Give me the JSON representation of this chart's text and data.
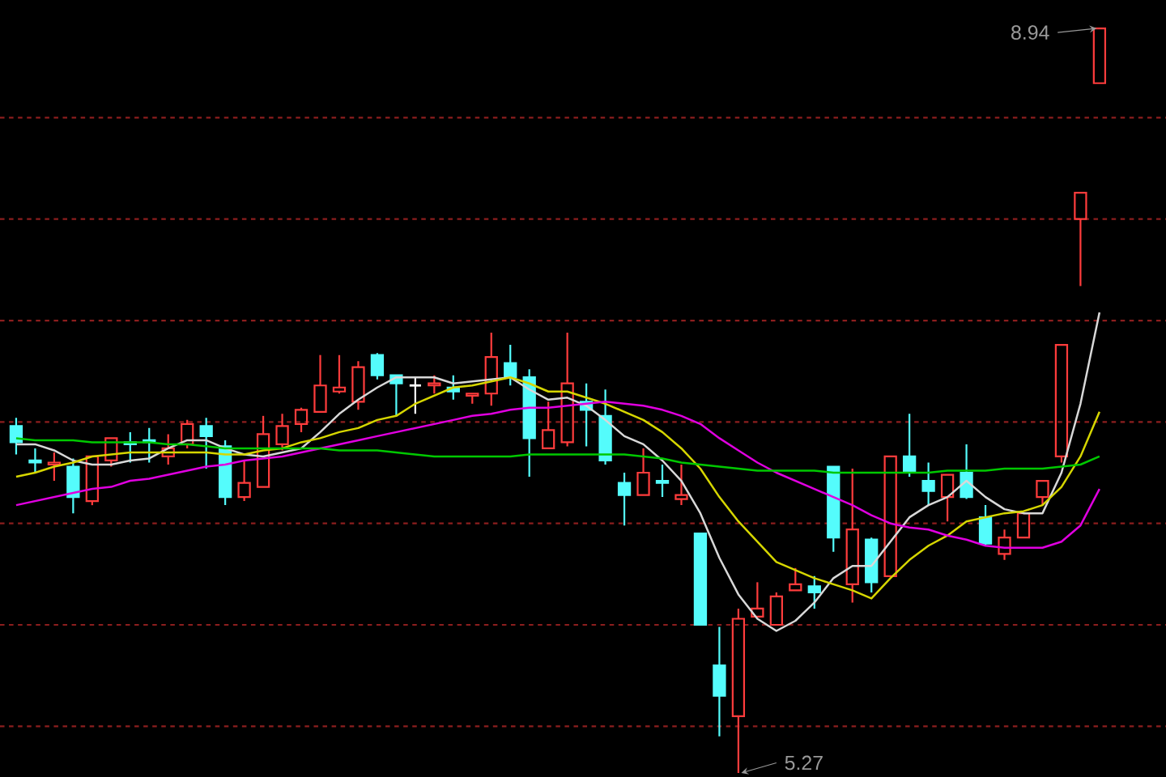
{
  "chart_data": {
    "type": "candlestick",
    "categories": [
      null,
      null,
      null,
      null,
      null,
      null,
      null,
      null,
      null,
      null,
      null,
      null,
      null,
      null,
      null,
      null,
      null,
      null,
      null,
      null,
      null,
      null,
      null,
      null,
      null,
      null,
      null,
      null,
      null,
      null,
      null,
      null,
      null,
      null,
      null,
      null,
      null,
      null,
      null,
      null,
      null,
      null,
      null,
      null,
      null,
      null,
      null,
      null,
      null,
      null,
      null,
      null,
      null,
      null,
      null,
      null,
      null,
      null
    ],
    "ohlc": [
      [
        6.98,
        7.02,
        6.84,
        6.9
      ],
      [
        6.81,
        6.87,
        6.75,
        6.8
      ],
      [
        6.79,
        6.85,
        6.71,
        6.8
      ],
      [
        6.78,
        6.82,
        6.55,
        6.63
      ],
      [
        6.61,
        6.83,
        6.59,
        6.83
      ],
      [
        6.81,
        6.92,
        6.78,
        6.92
      ],
      [
        6.9,
        6.95,
        6.8,
        6.89
      ],
      [
        6.91,
        6.97,
        6.8,
        6.9
      ],
      [
        6.83,
        6.94,
        6.79,
        6.87
      ],
      [
        6.89,
        7.01,
        6.87,
        6.99
      ],
      [
        6.98,
        7.02,
        6.77,
        6.93
      ],
      [
        6.88,
        6.91,
        6.59,
        6.63
      ],
      [
        6.63,
        6.81,
        6.61,
        6.7
      ],
      [
        6.68,
        7.03,
        6.68,
        6.94
      ],
      [
        6.89,
        7.04,
        6.86,
        6.98
      ],
      [
        6.99,
        7.07,
        6.95,
        7.06
      ],
      [
        7.05,
        7.33,
        7.05,
        7.18
      ],
      [
        7.15,
        7.33,
        7.14,
        7.17
      ],
      [
        7.1,
        7.3,
        7.06,
        7.27
      ],
      [
        7.33,
        7.34,
        7.21,
        7.23
      ],
      [
        7.23,
        7.23,
        7.03,
        7.19
      ],
      [
        7.18,
        7.22,
        7.04,
        7.18
      ],
      [
        7.18,
        7.23,
        7.14,
        7.19
      ],
      [
        7.17,
        7.23,
        7.11,
        7.15
      ],
      [
        7.13,
        7.14,
        7.09,
        7.14
      ],
      [
        7.14,
        7.44,
        7.08,
        7.32
      ],
      [
        7.29,
        7.38,
        7.18,
        7.22
      ],
      [
        7.22,
        7.26,
        6.73,
        6.92
      ],
      [
        6.87,
        7.1,
        6.87,
        6.96
      ],
      [
        6.9,
        7.44,
        6.88,
        7.19
      ],
      [
        7.1,
        7.19,
        6.88,
        7.06
      ],
      [
        7.03,
        7.16,
        6.79,
        6.81
      ],
      [
        6.7,
        6.75,
        6.49,
        6.64
      ],
      [
        6.64,
        6.87,
        6.64,
        6.75
      ],
      [
        6.71,
        6.79,
        6.63,
        6.7
      ],
      [
        6.62,
        6.79,
        6.59,
        6.64
      ],
      [
        6.45,
        6.45,
        6.0,
        6.0
      ],
      [
        5.8,
        5.99,
        5.45,
        5.65
      ],
      [
        5.55,
        6.08,
        5.27,
        6.03
      ],
      [
        6.04,
        6.21,
        6.04,
        6.08
      ],
      [
        6.0,
        6.16,
        6.0,
        6.14
      ],
      [
        6.17,
        6.28,
        6.17,
        6.2
      ],
      [
        6.19,
        6.24,
        6.08,
        6.16
      ],
      [
        6.78,
        6.78,
        6.36,
        6.43
      ],
      [
        6.2,
        6.77,
        6.11,
        6.47
      ],
      [
        6.42,
        6.43,
        6.16,
        6.21
      ],
      [
        6.24,
        6.83,
        6.24,
        6.83
      ],
      [
        6.83,
        7.04,
        6.73,
        6.75
      ],
      [
        6.71,
        6.8,
        6.59,
        6.66
      ],
      [
        6.63,
        6.74,
        6.51,
        6.74
      ],
      [
        6.75,
        6.89,
        6.62,
        6.63
      ],
      [
        6.53,
        6.59,
        6.39,
        6.4
      ],
      [
        6.35,
        6.47,
        6.32,
        6.43
      ],
      [
        6.43,
        6.55,
        6.43,
        6.55
      ],
      [
        6.63,
        6.71,
        6.59,
        6.71
      ],
      [
        6.83,
        7.38,
        6.8,
        7.38
      ],
      [
        8.0,
        8.13,
        7.67,
        8.13
      ],
      [
        8.67,
        8.94,
        8.67,
        8.94
      ]
    ],
    "colors": [
      "#54fcfc",
      "#54fcfc",
      "#ff3c3c",
      "#54fcfc",
      "#ff3c3c",
      "#ff3c3c",
      "#54fcfc",
      "#54fcfc",
      "#ff3c3c",
      "#ff3c3c",
      "#54fcfc",
      "#54fcfc",
      "#ff3c3c",
      "#ff3c3c",
      "#ff3c3c",
      "#ff3c3c",
      "#ff3c3c",
      "#ff3c3c",
      "#ff3c3c",
      "#54fcfc",
      "#54fcfc",
      "#ffffff",
      "#ff3c3c",
      "#54fcfc",
      "#ff3c3c",
      "#ff3c3c",
      "#54fcfc",
      "#54fcfc",
      "#ff3c3c",
      "#ff3c3c",
      "#54fcfc",
      "#54fcfc",
      "#54fcfc",
      "#ff3c3c",
      "#54fcfc",
      "#ff3c3c",
      "#54fcfc",
      "#54fcfc",
      "#ff3c3c",
      "#ff3c3c",
      "#ff3c3c",
      "#ff3c3c",
      "#54fcfc",
      "#54fcfc",
      "#ff3c3c",
      "#54fcfc",
      "#ff3c3c",
      "#54fcfc",
      "#54fcfc",
      "#ff3c3c",
      "#54fcfc",
      "#54fcfc",
      "#ff3c3c",
      "#ff3c3c",
      "#ff3c3c",
      "#ff3c3c",
      "#ff3c3c",
      "#ff3c3c"
    ],
    "series": [
      {
        "type": "line",
        "color": "#d8d8d8",
        "values": [
          6.89,
          6.89,
          6.86,
          6.81,
          6.79,
          6.79,
          6.81,
          6.82,
          6.87,
          6.91,
          6.91,
          6.87,
          6.84,
          6.83,
          6.85,
          6.87,
          6.95,
          7.04,
          7.11,
          7.17,
          7.22,
          7.22,
          7.22,
          7.19,
          7.2,
          7.21,
          7.22,
          7.16,
          7.11,
          7.12,
          7.08,
          7.01,
          6.93,
          6.89,
          6.81,
          6.71,
          6.55,
          6.33,
          6.15,
          6.03,
          5.97,
          6.02,
          6.11,
          6.23,
          6.29,
          6.29,
          6.41,
          6.53,
          6.59,
          6.63,
          6.71,
          6.63,
          6.57,
          6.55,
          6.55,
          6.75,
          7.09,
          7.54
        ]
      },
      {
        "type": "line",
        "color": "#d6d600",
        "values": [
          6.73,
          6.75,
          6.78,
          6.8,
          6.83,
          6.84,
          6.85,
          6.85,
          6.85,
          6.85,
          6.85,
          6.84,
          6.84,
          6.86,
          6.87,
          6.9,
          6.92,
          6.95,
          6.97,
          7.01,
          7.03,
          7.09,
          7.13,
          7.17,
          7.18,
          7.2,
          7.22,
          7.19,
          7.15,
          7.15,
          7.12,
          7.09,
          7.05,
          7.01,
          6.95,
          6.87,
          6.77,
          6.63,
          6.51,
          6.41,
          6.31,
          6.27,
          6.23,
          6.2,
          6.17,
          6.13,
          6.23,
          6.32,
          6.39,
          6.44,
          6.51,
          6.53,
          6.55,
          6.56,
          6.59,
          6.68,
          6.83,
          7.05
        ]
      },
      {
        "type": "line",
        "color": "#e000e0",
        "values": [
          6.59,
          6.61,
          6.63,
          6.65,
          6.67,
          6.68,
          6.71,
          6.72,
          6.74,
          6.76,
          6.78,
          6.79,
          6.81,
          6.82,
          6.83,
          6.85,
          6.87,
          6.89,
          6.91,
          6.93,
          6.95,
          6.97,
          6.99,
          7.01,
          7.03,
          7.04,
          7.06,
          7.07,
          7.07,
          7.08,
          7.09,
          7.1,
          7.09,
          7.08,
          7.06,
          7.03,
          6.99,
          6.92,
          6.86,
          6.8,
          6.75,
          6.71,
          6.67,
          6.63,
          6.59,
          6.54,
          6.5,
          6.48,
          6.47,
          6.44,
          6.42,
          6.39,
          6.38,
          6.38,
          6.38,
          6.41,
          6.49,
          6.67
        ]
      },
      {
        "type": "line",
        "color": "#00c800",
        "values": [
          6.92,
          6.91,
          6.91,
          6.91,
          6.9,
          6.9,
          6.9,
          6.9,
          6.89,
          6.89,
          6.88,
          6.87,
          6.87,
          6.87,
          6.87,
          6.87,
          6.87,
          6.86,
          6.86,
          6.86,
          6.85,
          6.84,
          6.83,
          6.83,
          6.83,
          6.83,
          6.83,
          6.84,
          6.84,
          6.84,
          6.84,
          6.84,
          6.84,
          6.83,
          6.82,
          6.8,
          6.79,
          6.78,
          6.77,
          6.76,
          6.76,
          6.76,
          6.76,
          6.75,
          6.75,
          6.75,
          6.75,
          6.75,
          6.75,
          6.76,
          6.76,
          6.76,
          6.77,
          6.77,
          6.77,
          6.78,
          6.79,
          6.83
        ]
      }
    ],
    "ylim": [
      5.25,
      9.08
    ],
    "yticks": [
      {
        "value": 5.5,
        "label": null
      },
      {
        "value": 6.0,
        "label": null
      },
      {
        "value": 6.5,
        "label": null
      },
      {
        "value": 7.0,
        "label": null
      },
      {
        "value": 7.5,
        "label": null
      },
      {
        "value": 8.0,
        "label": null
      },
      {
        "value": 8.5,
        "label": null
      }
    ],
    "grid": "y",
    "annotations": [
      "8.94",
      "5.27"
    ]
  }
}
